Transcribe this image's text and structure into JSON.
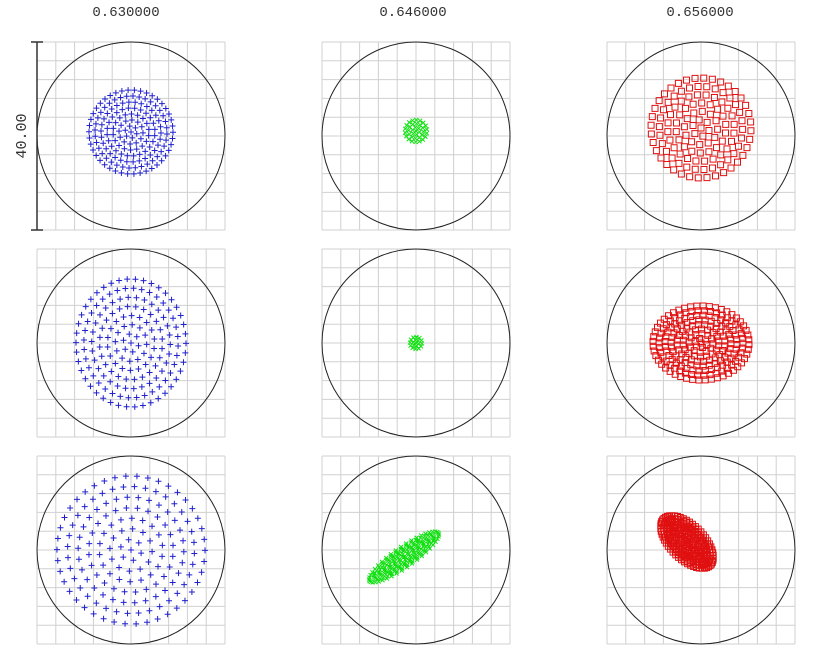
{
  "wavelengths": [
    "0.630000",
    "0.646000",
    "0.656000"
  ],
  "scale_label": "40.00"
}
